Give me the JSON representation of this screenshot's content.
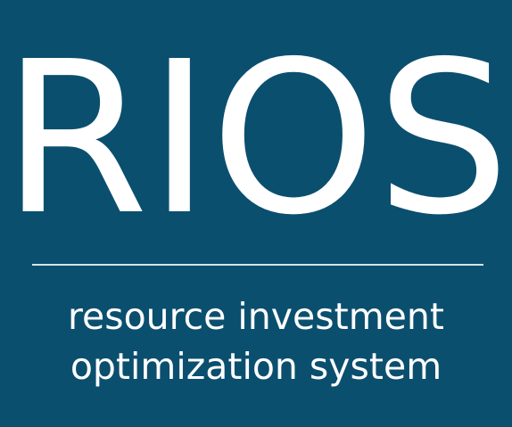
{
  "logo": {
    "title": "RIOS",
    "tagline_line1": "resource investment",
    "tagline_line2": "optimization system"
  },
  "colors": {
    "background": "#0b4f6f",
    "text": "#ffffff",
    "rule": "#d8e3ea"
  }
}
